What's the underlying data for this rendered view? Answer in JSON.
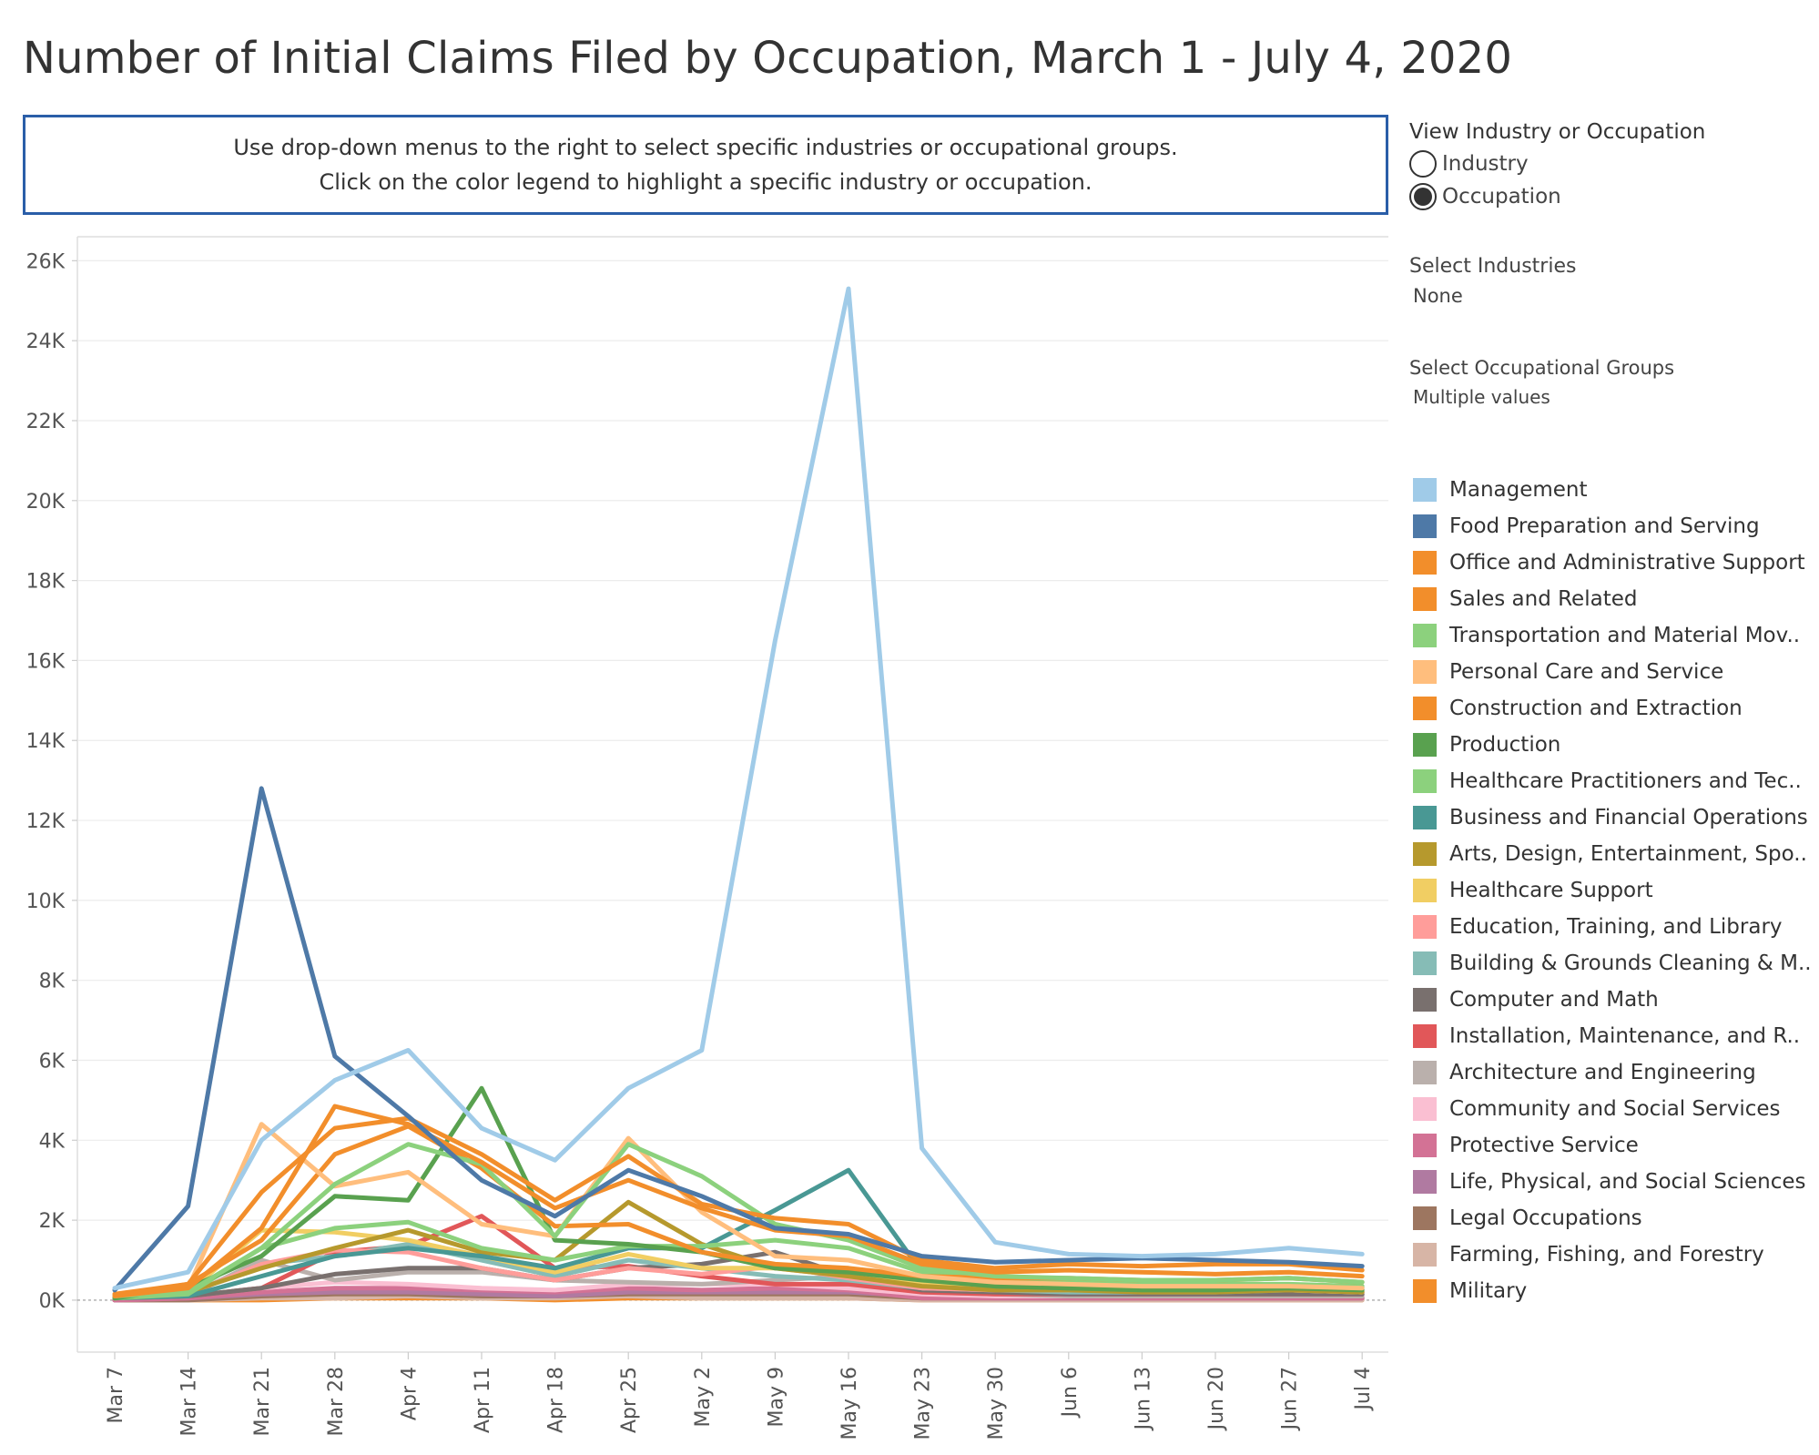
{
  "title": "Number of Initial Claims Filed by Occupation, March 1 - July 4, 2020",
  "info": {
    "line1": "Use drop-down menus to the right to select specific industries or occupational groups.",
    "line2": "Click on the color legend to highlight a specific industry or occupation."
  },
  "view_toggle": {
    "title": "View Industry or Occupation",
    "options": [
      {
        "label": "Industry",
        "selected": false
      },
      {
        "label": "Occupation",
        "selected": true
      }
    ]
  },
  "industries_filter": {
    "title": "Select Industries",
    "value": "None"
  },
  "occupations_filter": {
    "title": "Select Occupational Groups",
    "value": "Multiple values"
  },
  "chart_data": {
    "type": "line",
    "title": "Number of Initial Claims Filed by Occupation, March 1 - July 4, 2020",
    "xlabel": "",
    "ylabel": "",
    "x": [
      "Mar 7",
      "Mar 14",
      "Mar 21",
      "Mar 28",
      "Apr 4",
      "Apr 11",
      "Apr 18",
      "Apr 25",
      "May 2",
      "May 9",
      "May 16",
      "May 23",
      "May 30",
      "Jun 6",
      "Jun 13",
      "Jun 20",
      "Jun 27",
      "Jul 4"
    ],
    "ylim": [
      -1300,
      26600
    ],
    "yticks": [
      0,
      2000,
      4000,
      6000,
      8000,
      10000,
      12000,
      14000,
      16000,
      18000,
      20000,
      22000,
      24000,
      26000
    ],
    "ytick_labels": [
      "0K",
      "2K",
      "4K",
      "6K",
      "8K",
      "10K",
      "12K",
      "14K",
      "16K",
      "18K",
      "20K",
      "22K",
      "24K",
      "26K"
    ],
    "grid": "horizontal",
    "legend_position": "right",
    "series": [
      {
        "name": "Management",
        "color": "#a0cbe8",
        "values": [
          300,
          700,
          4000,
          5500,
          6250,
          4300,
          3500,
          5300,
          6250,
          16500,
          25300,
          3800,
          1450,
          1150,
          1100,
          1150,
          1300,
          1150
        ]
      },
      {
        "name": "Food Preparation and Serving",
        "color": "#4e79a7",
        "values": [
          250,
          2350,
          12800,
          6100,
          4600,
          3000,
          2100,
          3250,
          2600,
          1800,
          1650,
          1100,
          950,
          1000,
          1050,
          1000,
          950,
          850
        ]
      },
      {
        "name": "Office and Administrative Support",
        "color": "#f28e2b",
        "values": [
          150,
          400,
          2700,
          4300,
          4550,
          3650,
          2500,
          3600,
          2400,
          2050,
          1900,
          1000,
          800,
          900,
          850,
          900,
          900,
          750
        ]
      },
      {
        "name": "Sales and Related",
        "color": "#f28e2b",
        "values": [
          100,
          300,
          1800,
          4850,
          4400,
          3450,
          2300,
          3000,
          2300,
          1750,
          1600,
          900,
          700,
          750,
          700,
          650,
          700,
          600
        ]
      },
      {
        "name": "Transportation and Material Mov..",
        "color": "#8cd17d",
        "values": [
          100,
          200,
          1300,
          2900,
          3900,
          3400,
          1600,
          3900,
          3100,
          1900,
          1500,
          800,
          600,
          550,
          500,
          500,
          550,
          450
        ]
      },
      {
        "name": "Personal Care and Service",
        "color": "#ffbe7d",
        "values": [
          150,
          300,
          4400,
          2850,
          3200,
          1900,
          1600,
          4050,
          2200,
          1100,
          1000,
          600,
          450,
          400,
          350,
          350,
          350,
          300
        ]
      },
      {
        "name": "Construction and Extraction",
        "color": "#f28e2b",
        "values": [
          100,
          400,
          1500,
          3650,
          4350,
          3300,
          1850,
          1900,
          1200,
          900,
          800,
          600,
          550,
          550,
          500,
          500,
          550,
          450
        ]
      },
      {
        "name": "Production",
        "color": "#59a14f",
        "values": [
          50,
          300,
          1100,
          2600,
          2500,
          5300,
          1500,
          1400,
          1200,
          800,
          700,
          500,
          350,
          300,
          250,
          250,
          300,
          250
        ]
      },
      {
        "name": "Healthcare Practitioners and Tec..",
        "color": "#8cd17d",
        "values": [
          50,
          150,
          1300,
          1800,
          1950,
          1300,
          1000,
          1350,
          1350,
          1500,
          1300,
          700,
          500,
          450,
          400,
          400,
          400,
          350
        ]
      },
      {
        "name": "Business and Financial Operations",
        "color": "#499894",
        "values": [
          50,
          100,
          600,
          1100,
          1300,
          1100,
          800,
          1300,
          1300,
          2250,
          3250,
          700,
          350,
          300,
          300,
          300,
          350,
          300
        ]
      },
      {
        "name": "Arts, Design, Entertainment, Spo..",
        "color": "#b6992d",
        "values": [
          50,
          200,
          800,
          1300,
          1750,
          1200,
          1000,
          2450,
          1400,
          800,
          600,
          350,
          250,
          250,
          200,
          200,
          250,
          200
        ]
      },
      {
        "name": "Healthcare Support",
        "color": "#f1ce63",
        "values": [
          50,
          200,
          1750,
          1700,
          1500,
          1100,
          700,
          1150,
          800,
          800,
          600,
          400,
          300,
          250,
          250,
          250,
          250,
          200
        ]
      },
      {
        "name": "Education, Training, and Library",
        "color": "#ff9d9a",
        "values": [
          50,
          150,
          900,
          1250,
          1200,
          800,
          500,
          800,
          650,
          850,
          550,
          300,
          250,
          250,
          250,
          250,
          250,
          200
        ]
      },
      {
        "name": "Building & Grounds Cleaning & M..",
        "color": "#86bcb6",
        "values": [
          50,
          150,
          900,
          1100,
          1400,
          1000,
          600,
          1000,
          800,
          600,
          500,
          300,
          250,
          200,
          200,
          200,
          250,
          200
        ]
      },
      {
        "name": "Computer and Math",
        "color": "#79706e",
        "values": [
          50,
          100,
          300,
          650,
          800,
          800,
          500,
          800,
          900,
          1200,
          600,
          250,
          200,
          150,
          150,
          150,
          150,
          150
        ]
      },
      {
        "name": "Installation, Maintenance, and R..",
        "color": "#e15759",
        "values": [
          50,
          100,
          300,
          1200,
          1350,
          2100,
          800,
          850,
          600,
          400,
          400,
          200,
          150,
          150,
          150,
          150,
          150,
          150
        ]
      },
      {
        "name": "Architecture and Engineering",
        "color": "#bab0ac",
        "values": [
          50,
          100,
          1000,
          500,
          700,
          700,
          500,
          450,
          400,
          500,
          600,
          200,
          150,
          100,
          100,
          100,
          100,
          100
        ]
      },
      {
        "name": "Community and Social Services",
        "color": "#fabfd2",
        "values": [
          50,
          100,
          300,
          450,
          400,
          300,
          250,
          400,
          400,
          400,
          300,
          150,
          100,
          100,
          100,
          100,
          100,
          100
        ]
      },
      {
        "name": "Protective Service",
        "color": "#d37295",
        "values": [
          0,
          50,
          200,
          300,
          300,
          250,
          200,
          300,
          250,
          300,
          250,
          50,
          50,
          50,
          50,
          50,
          50,
          50
        ]
      },
      {
        "name": "Life, Physical, and Social Sciences",
        "color": "#b07aa1",
        "values": [
          0,
          50,
          150,
          200,
          200,
          150,
          100,
          200,
          200,
          200,
          200,
          100,
          50,
          50,
          50,
          50,
          50,
          50
        ]
      },
      {
        "name": "Legal Occupations",
        "color": "#9d7660",
        "values": [
          0,
          0,
          100,
          150,
          150,
          100,
          100,
          150,
          150,
          150,
          150,
          50,
          50,
          50,
          50,
          50,
          50,
          50
        ]
      },
      {
        "name": "Farming, Fishing, and Forestry",
        "color": "#d7b5a6",
        "values": [
          0,
          0,
          50,
          50,
          100,
          50,
          50,
          100,
          50,
          50,
          50,
          0,
          0,
          0,
          0,
          0,
          0,
          0
        ]
      },
      {
        "name": "Military",
        "color": "#f28e2b",
        "values": [
          0,
          0,
          0,
          50,
          50,
          50,
          0,
          50,
          50,
          50,
          50,
          0,
          0,
          0,
          0,
          0,
          0,
          0
        ]
      }
    ]
  }
}
